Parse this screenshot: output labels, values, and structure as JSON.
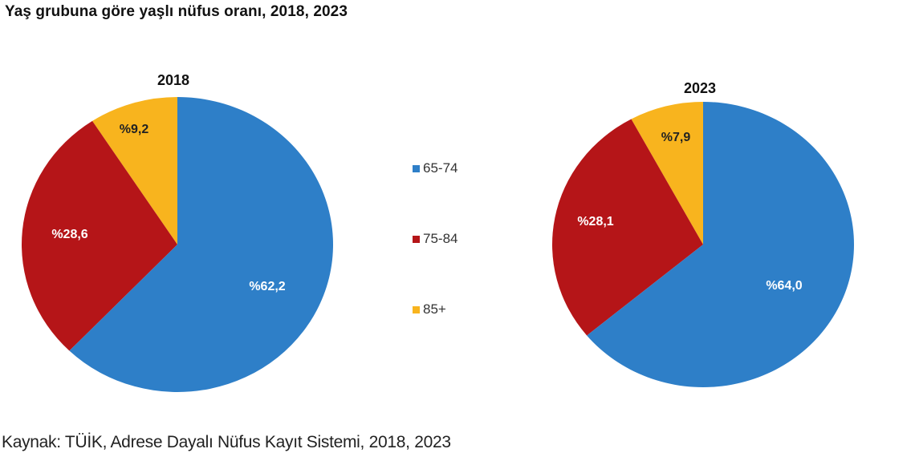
{
  "title": "Yaş grubuna göre yaşlı nüfus oranı, 2018, 2023",
  "source": "Kaynak: TÜİK, Adrese Dayalı Nüfus Kayıt Sistemi, 2018, 2023",
  "colors": {
    "65-74": "#2E7FC8",
    "75-84": "#B51518",
    "85+": "#F8B41E"
  },
  "legend": [
    {
      "label": "65-74",
      "color": "#2E7FC8"
    },
    {
      "label": "75-84",
      "color": "#B51518"
    },
    {
      "label": "85+",
      "color": "#F8B41E"
    }
  ],
  "pies": [
    {
      "year": "2018",
      "labels": [
        "%62,2",
        "%28,6",
        "%9,2"
      ]
    },
    {
      "year": "2023",
      "labels": [
        "%64,0",
        "%28,1",
        "%7,9"
      ]
    }
  ],
  "chart_data": [
    {
      "type": "pie",
      "title": "2018",
      "categories": [
        "65-74",
        "75-84",
        "85+"
      ],
      "values": [
        62.2,
        28.6,
        9.2
      ],
      "data_labels": [
        "%62,2",
        "%28,6",
        "%9,2"
      ],
      "colors": [
        "#2E7FC8",
        "#B51518",
        "#F8B41E"
      ],
      "legend_position": "center-between",
      "figure_title": "Yaş grubuna göre yaşlı nüfus oranı, 2018, 2023"
    },
    {
      "type": "pie",
      "title": "2023",
      "categories": [
        "65-74",
        "75-84",
        "85+"
      ],
      "values": [
        64.0,
        28.1,
        7.9
      ],
      "data_labels": [
        "%64,0",
        "%28,1",
        "%7,9"
      ],
      "colors": [
        "#2E7FC8",
        "#B51518",
        "#F8B41E"
      ],
      "legend_position": "center-between",
      "figure_title": "Yaş grubuna göre yaşlı nüfus oranı, 2018, 2023"
    }
  ]
}
